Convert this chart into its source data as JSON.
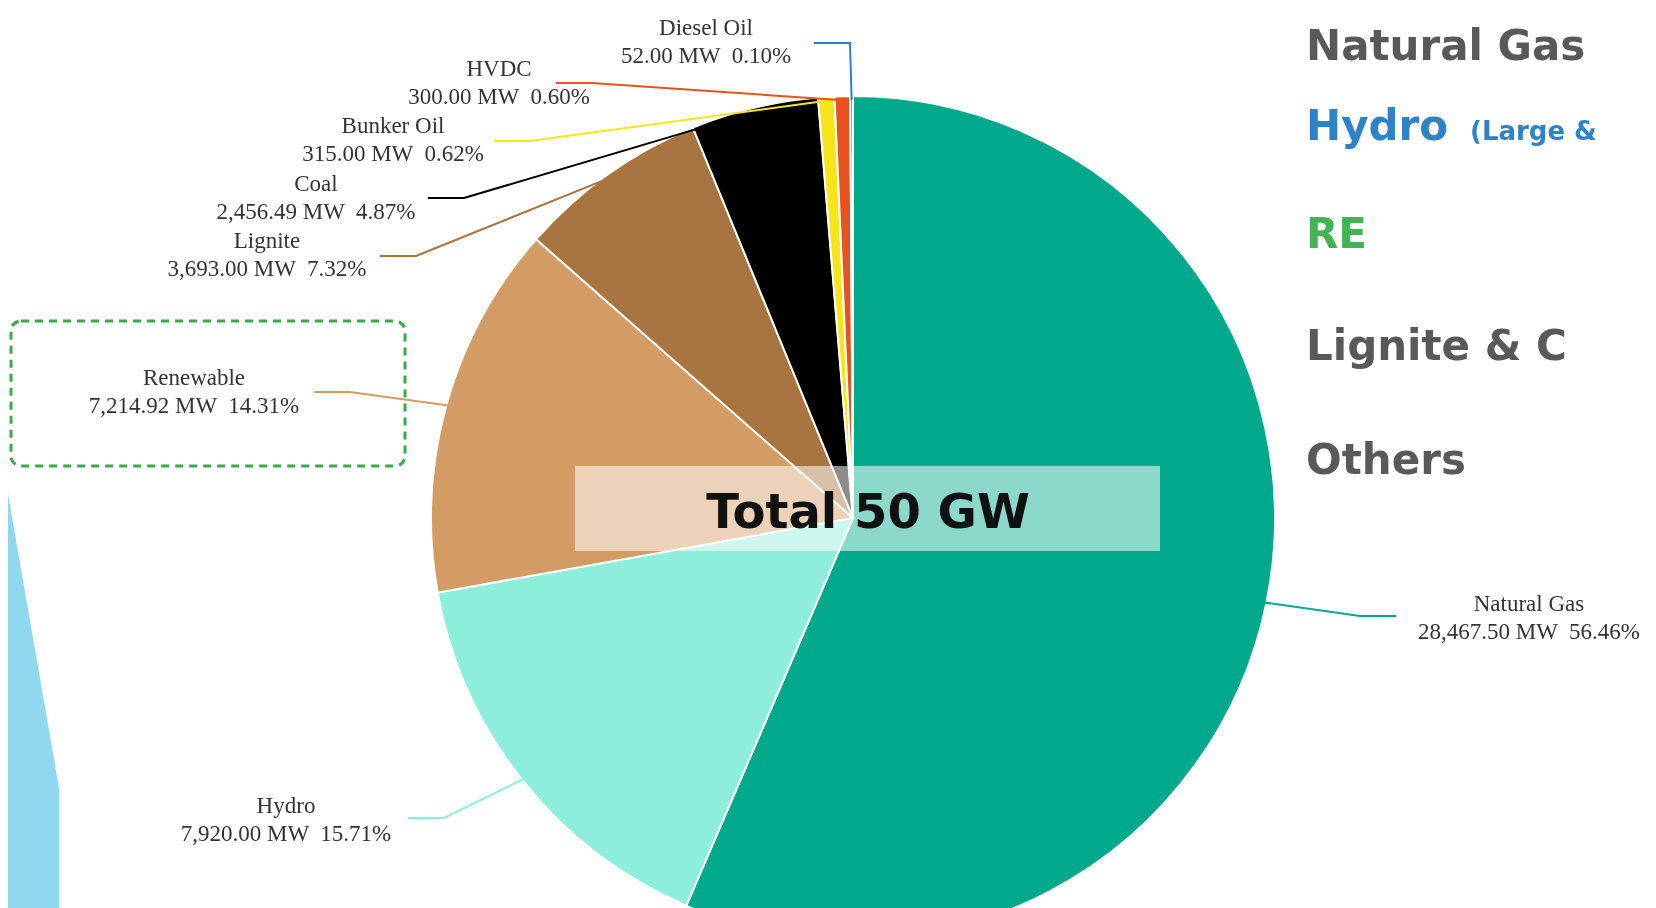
{
  "chart_data": {
    "type": "pie",
    "categories": [
      "Natural Gas",
      "Hydro",
      "Renewable",
      "Lignite",
      "Coal",
      "Bunker Oil",
      "HVDC",
      "Diesel Oil"
    ],
    "values": [
      28467.5,
      7920,
      7214.92,
      3693,
      2456.49,
      315,
      300,
      52
    ],
    "colors": [
      "#00a88c",
      "#8deedc",
      "#d29c64",
      "#a8743f",
      "#000000",
      "#f7e51a",
      "#e8521e",
      "#2f7fcf"
    ],
    "value_labels": [
      "28,467.50 MW  56.46%",
      "7,920.00 MW  15.71%",
      "7,214.92 MW  14.31%",
      "3,693.00 MW  7.32%",
      "2,456.49 MW  4.87%",
      "315.00 MW  0.62%",
      "300.00 MW  0.60%",
      "52.00 MW  0.10%"
    ],
    "annotations": [
      "Total 50 GW",
      "Natural Gas",
      "Hydro",
      "(Large &",
      "RE",
      "Lignite & C",
      "Others"
    ]
  }
}
